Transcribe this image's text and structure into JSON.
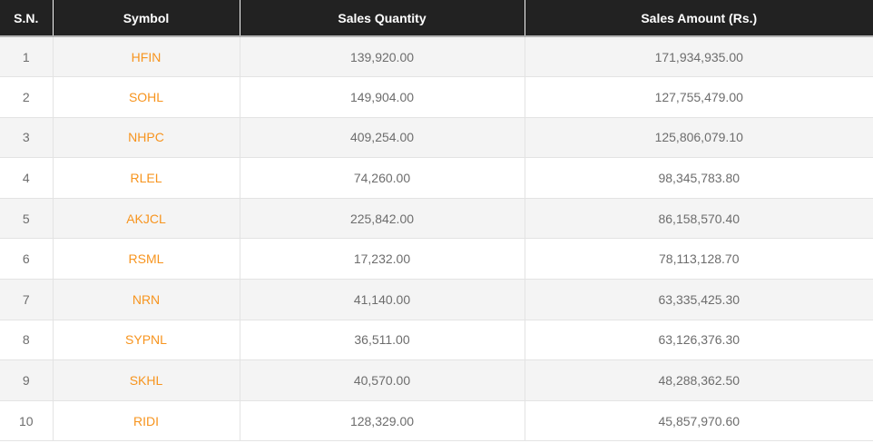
{
  "table": {
    "columns": [
      {
        "key": "sn",
        "label": "S.N."
      },
      {
        "key": "symbol",
        "label": "Symbol"
      },
      {
        "key": "quantity",
        "label": "Sales Quantity"
      },
      {
        "key": "amount",
        "label": "Sales Amount (Rs.)"
      }
    ],
    "rows": [
      {
        "sn": "1",
        "symbol": "HFIN",
        "quantity": "139,920.00",
        "amount": "171,934,935.00"
      },
      {
        "sn": "2",
        "symbol": "SOHL",
        "quantity": "149,904.00",
        "amount": "127,755,479.00"
      },
      {
        "sn": "3",
        "symbol": "NHPC",
        "quantity": "409,254.00",
        "amount": "125,806,079.10"
      },
      {
        "sn": "4",
        "symbol": "RLEL",
        "quantity": "74,260.00",
        "amount": "98,345,783.80"
      },
      {
        "sn": "5",
        "symbol": "AKJCL",
        "quantity": "225,842.00",
        "amount": "86,158,570.40"
      },
      {
        "sn": "6",
        "symbol": "RSML",
        "quantity": "17,232.00",
        "amount": "78,113,128.70"
      },
      {
        "sn": "7",
        "symbol": "NRN",
        "quantity": "41,140.00",
        "amount": "63,335,425.30"
      },
      {
        "sn": "8",
        "symbol": "SYPNL",
        "quantity": "36,511.00",
        "amount": "63,126,376.30"
      },
      {
        "sn": "9",
        "symbol": "SKHL",
        "quantity": "40,570.00",
        "amount": "48,288,362.50"
      },
      {
        "sn": "10",
        "symbol": "RIDI",
        "quantity": "128,329.00",
        "amount": "45,857,970.60"
      }
    ]
  },
  "colors": {
    "header_bg": "#222222",
    "header_text": "#ffffff",
    "row_alt_bg": "#f4f4f4",
    "row_bg": "#ffffff",
    "cell_border": "#e3e3e3",
    "body_text": "#6d6d6d",
    "symbol_link": "#f7941e"
  }
}
